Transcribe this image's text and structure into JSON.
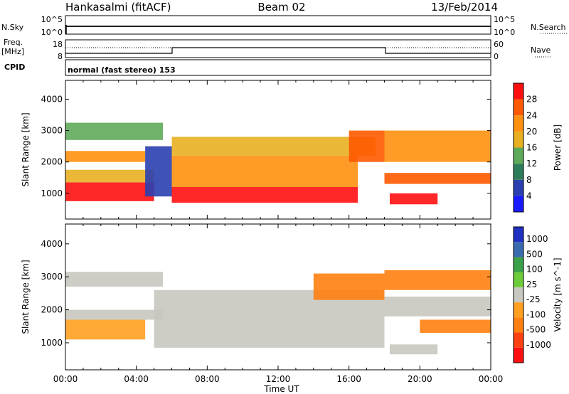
{
  "header": {
    "station": "Hankasalmi (fitACF)",
    "beam": "Beam 02",
    "date": "13/Feb/2014"
  },
  "status_panels": {
    "nsky_label": "N.Sky",
    "nsky_ticks": [
      "10^5",
      "10^0"
    ],
    "nsearch_label": "N.Search",
    "nsearch_ticks": [
      "10^5",
      "10^0"
    ],
    "freq_label_1": "Freq.",
    "freq_label_2": "[MHz]",
    "freq_ticks": [
      "18",
      "8"
    ],
    "nave_label": "Nave",
    "nave_ticks": [
      "60",
      "0"
    ],
    "cpid_label": "CPID",
    "cpid_value": "normal (fast stereo) 153"
  },
  "colors": {
    "power_scale": [
      "#1a1aff",
      "#2a3fb0",
      "#2e7d5a",
      "#5faa5a",
      "#e8b020",
      "#ff9010",
      "#ff5a00",
      "#ff1010"
    ],
    "velocity_scale": [
      "#ff1010",
      "#ff4010",
      "#ff8010",
      "#ffa020",
      "#c8c8c0",
      "#6ccc3a",
      "#3aa04a",
      "#3a6ab0",
      "#2030c0"
    ],
    "ground_scatter": "#c8c8c0"
  },
  "chart_data": [
    {
      "type": "heatmap",
      "name": "power",
      "ylabel": "Slant Range [km]",
      "yticks": [
        1000,
        2000,
        3000,
        4000
      ],
      "ylim": [
        180,
        4600
      ],
      "xlim": [
        0,
        24
      ],
      "colorbar_label": "Power [dB]",
      "colorbar_ticks": [
        4,
        8,
        12,
        16,
        20,
        24,
        28
      ],
      "colorbar_range": [
        0,
        32
      ],
      "bands": [
        {
          "x": [
            0.0,
            5.0
          ],
          "y": [
            750,
            1350
          ],
          "level": 30
        },
        {
          "x": [
            0.0,
            5.0
          ],
          "y": [
            1350,
            1750
          ],
          "level": 16
        },
        {
          "x": [
            0.0,
            4.5
          ],
          "y": [
            2000,
            2350
          ],
          "level": 20
        },
        {
          "x": [
            0.0,
            5.5
          ],
          "y": [
            2700,
            3250
          ],
          "level": 14
        },
        {
          "x": [
            4.5,
            6.0
          ],
          "y": [
            900,
            2500
          ],
          "level": 6
        },
        {
          "x": [
            6.0,
            16.5
          ],
          "y": [
            700,
            1200
          ],
          "level": 28
        },
        {
          "x": [
            6.0,
            16.5
          ],
          "y": [
            1200,
            2200
          ],
          "level": 20
        },
        {
          "x": [
            6.0,
            17.5
          ],
          "y": [
            2200,
            2800
          ],
          "level": 16
        },
        {
          "x": [
            16.0,
            18.0
          ],
          "y": [
            2000,
            3000
          ],
          "level": 26
        },
        {
          "x": [
            18.0,
            24.0
          ],
          "y": [
            1300,
            1650
          ],
          "level": 26
        },
        {
          "x": [
            18.0,
            24.0
          ],
          "y": [
            2000,
            3000
          ],
          "level": 22
        },
        {
          "x": [
            18.3,
            21.0
          ],
          "y": [
            650,
            1000
          ],
          "level": 28
        }
      ]
    },
    {
      "type": "heatmap",
      "name": "velocity",
      "ylabel": "Slant Range [km]",
      "xlabel": "Time UT",
      "yticks": [
        1000,
        2000,
        3000,
        4000
      ],
      "ylim": [
        180,
        4600
      ],
      "xlim": [
        0,
        24
      ],
      "xtick_labels": [
        "00:00",
        "04:00",
        "08:00",
        "12:00",
        "16:00",
        "20:00",
        "00:00"
      ],
      "colorbar_label": "Velocity [m s^-1]",
      "colorbar_ticks": [
        1000,
        500,
        100,
        25,
        -25,
        -100,
        -500,
        -1000
      ],
      "bands": [
        {
          "x": [
            0.0,
            4.5
          ],
          "y": [
            1100,
            1700
          ],
          "color": "#ffa020"
        },
        {
          "x": [
            0.0,
            5.5
          ],
          "y": [
            1700,
            2000
          ],
          "color": "#c8c8c0"
        },
        {
          "x": [
            0.0,
            5.5
          ],
          "y": [
            2700,
            3150
          ],
          "color": "#c8c8c0"
        },
        {
          "x": [
            5.0,
            18.0
          ],
          "y": [
            850,
            2600
          ],
          "color": "#c8c8c0"
        },
        {
          "x": [
            14.0,
            18.0
          ],
          "y": [
            2300,
            3100
          ],
          "color": "#ff8010"
        },
        {
          "x": [
            18.0,
            24.0
          ],
          "y": [
            1800,
            2400
          ],
          "color": "#c8c8c0"
        },
        {
          "x": [
            18.0,
            24.0
          ],
          "y": [
            2600,
            3200
          ],
          "color": "#ff8010"
        },
        {
          "x": [
            18.3,
            21.0
          ],
          "y": [
            650,
            950
          ],
          "color": "#c8c8c0"
        },
        {
          "x": [
            20.0,
            24.0
          ],
          "y": [
            1300,
            1700
          ],
          "color": "#ff8010"
        }
      ]
    }
  ]
}
